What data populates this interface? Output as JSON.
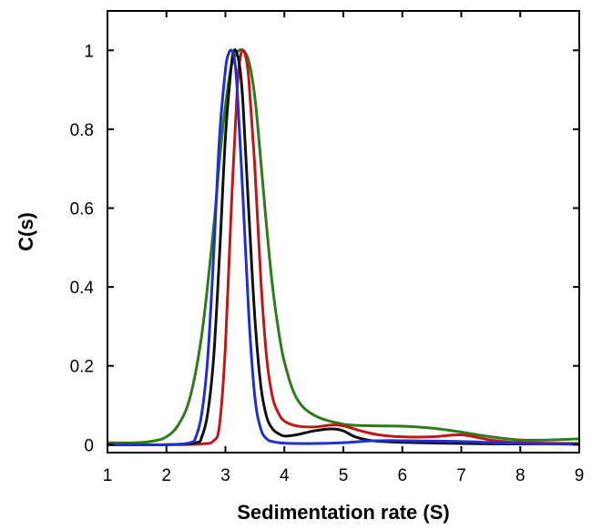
{
  "chart_data": {
    "type": "line",
    "title": "",
    "xlabel": "Sedimentation rate (S)",
    "ylabel": "C(s)",
    "xlim": [
      1,
      9
    ],
    "ylim": [
      -0.02,
      1.1
    ],
    "x_ticks": [
      1,
      2,
      3,
      4,
      5,
      6,
      7,
      8,
      9
    ],
    "y_ticks": [
      0,
      0.2,
      0.4,
      0.6,
      0.8,
      1
    ],
    "y_tick_labels": [
      "0",
      "0.2",
      "0.4",
      "0.6",
      "0.8",
      "1"
    ],
    "x_tick_labels": [
      "1",
      "2",
      "3",
      "4",
      "5",
      "6",
      "7",
      "8",
      "9"
    ],
    "grid": false,
    "legend": "none",
    "series": [
      {
        "color": "#2f7a1a",
        "x": [
          1.0,
          1.5,
          1.8,
          2.0,
          2.2,
          2.4,
          2.6,
          2.8,
          2.9,
          3.0,
          3.1,
          3.2,
          3.3,
          3.4,
          3.5,
          3.6,
          3.7,
          3.8,
          3.9,
          4.0,
          4.2,
          4.5,
          5.0,
          5.5,
          6.0,
          6.5,
          7.0,
          7.5,
          8.0,
          8.5,
          9.0
        ],
        "y": [
          0.005,
          0.005,
          0.01,
          0.02,
          0.05,
          0.12,
          0.28,
          0.55,
          0.72,
          0.86,
          0.96,
          0.995,
          1.0,
          0.97,
          0.88,
          0.72,
          0.55,
          0.4,
          0.29,
          0.21,
          0.12,
          0.075,
          0.052,
          0.048,
          0.047,
          0.042,
          0.032,
          0.02,
          0.012,
          0.012,
          0.015
        ]
      },
      {
        "color": "#c01818",
        "x": [
          1.0,
          2.0,
          2.6,
          2.8,
          2.9,
          3.0,
          3.1,
          3.2,
          3.25,
          3.3,
          3.35,
          3.4,
          3.5,
          3.6,
          3.7,
          3.8,
          3.9,
          4.0,
          4.2,
          4.5,
          4.8,
          5.0,
          5.3,
          5.6,
          6.0,
          6.5,
          7.0,
          7.5,
          8.0,
          9.0
        ],
        "y": [
          0.0,
          0.0,
          0.002,
          0.01,
          0.05,
          0.25,
          0.6,
          0.9,
          0.98,
          1.0,
          0.98,
          0.92,
          0.7,
          0.42,
          0.22,
          0.12,
          0.08,
          0.06,
          0.048,
          0.045,
          0.05,
          0.048,
          0.035,
          0.025,
          0.02,
          0.02,
          0.025,
          0.012,
          0.005,
          0.003
        ]
      },
      {
        "color": "#111111",
        "x": [
          1.0,
          2.0,
          2.5,
          2.6,
          2.7,
          2.8,
          2.9,
          3.0,
          3.1,
          3.15,
          3.2,
          3.25,
          3.3,
          3.4,
          3.5,
          3.6,
          3.7,
          3.8,
          3.9,
          4.0,
          4.2,
          4.5,
          4.8,
          5.0,
          5.2,
          5.5,
          6.0,
          7.0,
          8.0,
          9.0
        ],
        "y": [
          0.0,
          0.0,
          0.005,
          0.02,
          0.08,
          0.22,
          0.48,
          0.78,
          0.96,
          1.0,
          0.99,
          0.95,
          0.86,
          0.58,
          0.32,
          0.15,
          0.07,
          0.04,
          0.028,
          0.022,
          0.025,
          0.035,
          0.04,
          0.035,
          0.02,
          0.01,
          0.006,
          0.003,
          0.002,
          0.002
        ]
      },
      {
        "color": "#1f2fd0",
        "x": [
          1.0,
          2.0,
          2.4,
          2.5,
          2.6,
          2.7,
          2.8,
          2.9,
          3.0,
          3.05,
          3.1,
          3.15,
          3.2,
          3.3,
          3.4,
          3.5,
          3.6,
          3.7,
          3.8,
          4.0,
          4.5,
          5.0,
          5.5,
          6.0,
          7.0,
          8.0,
          9.0
        ],
        "y": [
          0.0,
          0.0,
          0.005,
          0.02,
          0.08,
          0.22,
          0.48,
          0.78,
          0.95,
          0.99,
          1.0,
          0.98,
          0.9,
          0.62,
          0.32,
          0.12,
          0.04,
          0.015,
          0.008,
          0.004,
          0.003,
          0.005,
          0.01,
          0.01,
          0.008,
          0.003,
          0.001
        ]
      }
    ]
  }
}
